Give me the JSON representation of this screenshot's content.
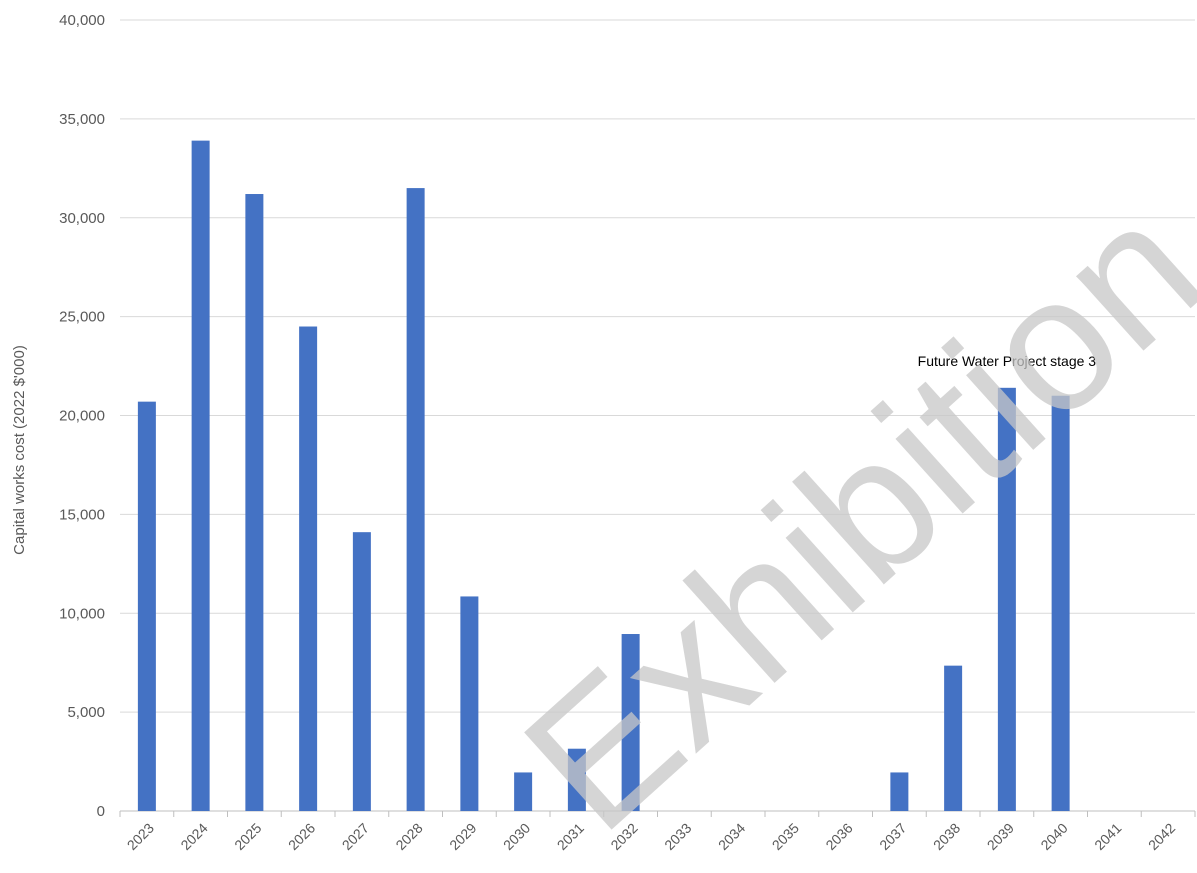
{
  "chart_data": {
    "type": "bar",
    "title": "",
    "xlabel": "",
    "ylabel": "Capital works cost (2022 $'000)",
    "categories": [
      "2023",
      "2024",
      "2025",
      "2026",
      "2027",
      "2028",
      "2029",
      "2030",
      "2031",
      "2032",
      "2033",
      "2034",
      "2035",
      "2036",
      "2037",
      "2038",
      "2039",
      "2040",
      "2041",
      "2042"
    ],
    "values": [
      20700,
      33900,
      31200,
      24500,
      14100,
      31500,
      10850,
      1950,
      3150,
      8950,
      0,
      0,
      0,
      0,
      1950,
      7350,
      21400,
      21000,
      0,
      0
    ],
    "ylim": [
      0,
      40000
    ],
    "yticks": [
      0,
      5000,
      10000,
      15000,
      20000,
      25000,
      30000,
      35000,
      40000
    ],
    "ytick_labels": [
      "0",
      "5,000",
      "10,000",
      "15,000",
      "20,000",
      "25,000",
      "30,000",
      "35,000",
      "40,000"
    ],
    "grid": true,
    "bar_color": "#4472c4",
    "gridline_color": "#d9d9d9",
    "annotation": {
      "text": "Future Water Project stage 3",
      "x": "2039",
      "y": 22500
    },
    "watermark": "Exhibition"
  }
}
